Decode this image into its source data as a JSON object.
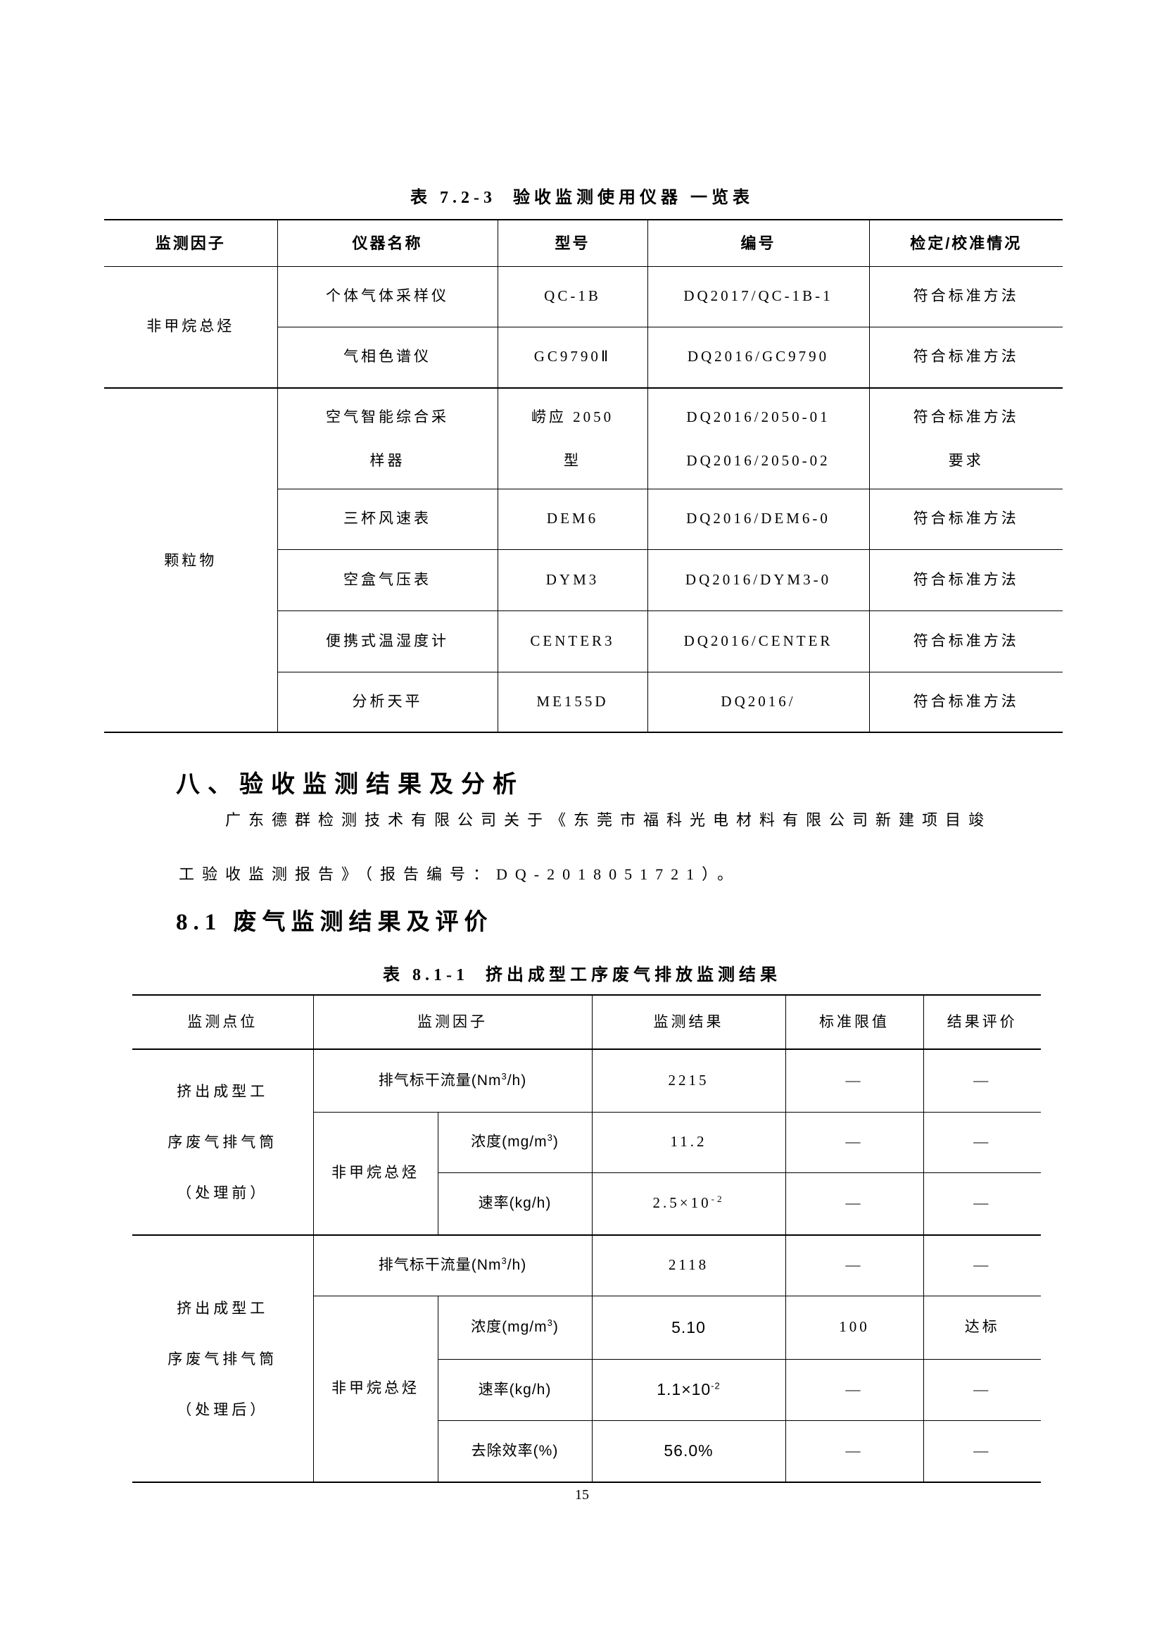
{
  "table1": {
    "title": "表 7.2-3  验收监测使用仪器 一览表",
    "headers": [
      {
        "t": "监测因子"
      },
      {
        "t": "仪器名称"
      },
      {
        "t": "型号"
      },
      {
        "t": "编号"
      },
      {
        "t": "检定/校准情况"
      }
    ],
    "rows": [
      {
        "cells": [
          {
            "t": "非甲烷总烃",
            "rs": 2
          },
          {
            "t": "个体气体采样仪"
          },
          {
            "t": "QC-1B"
          },
          {
            "t": "DQ2017/QC-1B-1"
          },
          {
            "t": "符合标准方法"
          }
        ]
      },
      {
        "cells": [
          {
            "t": "气相色谱仪"
          },
          {
            "t": "GC9790Ⅱ"
          },
          {
            "t": "DQ2016/GC9790"
          },
          {
            "t": "符合标准方法"
          }
        ]
      },
      {
        "group_start": true,
        "tall": true,
        "cells": [
          {
            "t": "颗粒物",
            "rs": 5
          },
          {
            "t": "空气智能综合采\n样器"
          },
          {
            "t": "崂应 2050\n型"
          },
          {
            "t": "DQ2016/2050-01\nDQ2016/2050-02"
          },
          {
            "t": "符合标准方法\n要求"
          }
        ]
      },
      {
        "cells": [
          {
            "t": "三杯风速表"
          },
          {
            "t": "DEM6"
          },
          {
            "t": "DQ2016/DEM6-0"
          },
          {
            "t": "符合标准方法"
          }
        ]
      },
      {
        "cells": [
          {
            "t": "空盒气压表"
          },
          {
            "t": "DYM3"
          },
          {
            "t": "DQ2016/DYM3-0"
          },
          {
            "t": "符合标准方法"
          }
        ]
      },
      {
        "cells": [
          {
            "t": "便携式温湿度计"
          },
          {
            "t": "CENTER3"
          },
          {
            "t": "DQ2016/CENTER"
          },
          {
            "t": "符合标准方法"
          }
        ]
      },
      {
        "cells": [
          {
            "t": "分析天平"
          },
          {
            "t": "ME155D"
          },
          {
            "t": "DQ2016/"
          },
          {
            "t": "符合标准方法"
          }
        ]
      }
    ]
  },
  "section_heading": "八、验收监测结果及分析",
  "paragraph_lines": [
    "广东德群检测技术有限公司关于《东莞市福科光电材料有限公司新建项目竣",
    "工验收监测报告》（报告编号：DQ-2018051721）。"
  ],
  "subsection_heading": "8.1 废气监测结果及评价",
  "table2": {
    "title": "表 8.1-1  挤出成型工序废气排放监测结果",
    "headers": [
      {
        "t": "监测点位"
      },
      {
        "t": "监测因子",
        "cs": 2
      },
      {
        "t": "监测结果"
      },
      {
        "t": "标准限值"
      },
      {
        "t": "结果评价"
      }
    ],
    "rows": [
      {
        "cells": [
          {
            "t": "挤出成型工\n序废气排气筒\n（处理前）",
            "rs": 3,
            "kind": "site"
          },
          {
            "t": "排气标干流量(Nm^3^/h)",
            "cs": 2,
            "kind": "factor"
          },
          {
            "t": "2215"
          },
          {
            "t": "—"
          },
          {
            "t": "—"
          }
        ]
      },
      {
        "cells": [
          {
            "t": "非甲烷总烃",
            "rs": 2
          },
          {
            "t": "浓度(mg/m^3^)",
            "kind": "factor"
          },
          {
            "t": "11.2"
          },
          {
            "t": "—"
          },
          {
            "t": "—"
          }
        ]
      },
      {
        "cells": [
          {
            "t": "速率(kg/h)",
            "kind": "factor"
          },
          {
            "t": "2.5×10^-2^"
          },
          {
            "t": "—"
          },
          {
            "t": "—"
          }
        ]
      },
      {
        "group_start": true,
        "cells": [
          {
            "t": "挤出成型工\n序废气排气筒\n（处理后）",
            "rs": 4,
            "kind": "site"
          },
          {
            "t": "排气标干流量(Nm^3^/h)",
            "cs": 2,
            "kind": "factor"
          },
          {
            "t": "2118"
          },
          {
            "t": "—"
          },
          {
            "t": "—"
          }
        ]
      },
      {
        "cells": [
          {
            "t": "非甲烷总烃",
            "rs": 3
          },
          {
            "t": "浓度(mg/m^3^)",
            "kind": "factor"
          },
          {
            "t": "5.10",
            "kind": "value-em"
          },
          {
            "t": "100"
          },
          {
            "t": "达标"
          }
        ]
      },
      {
        "cells": [
          {
            "t": "速率(kg/h)",
            "kind": "factor"
          },
          {
            "t": "1.1×10^-2^",
            "kind": "value-em"
          },
          {
            "t": "—"
          },
          {
            "t": "—"
          }
        ]
      },
      {
        "cells": [
          {
            "t": "去除效率(%)",
            "kind": "factor"
          },
          {
            "t": "56.0%",
            "kind": "value-em"
          },
          {
            "t": "—"
          },
          {
            "t": "—"
          }
        ]
      }
    ]
  },
  "page_number": "15"
}
